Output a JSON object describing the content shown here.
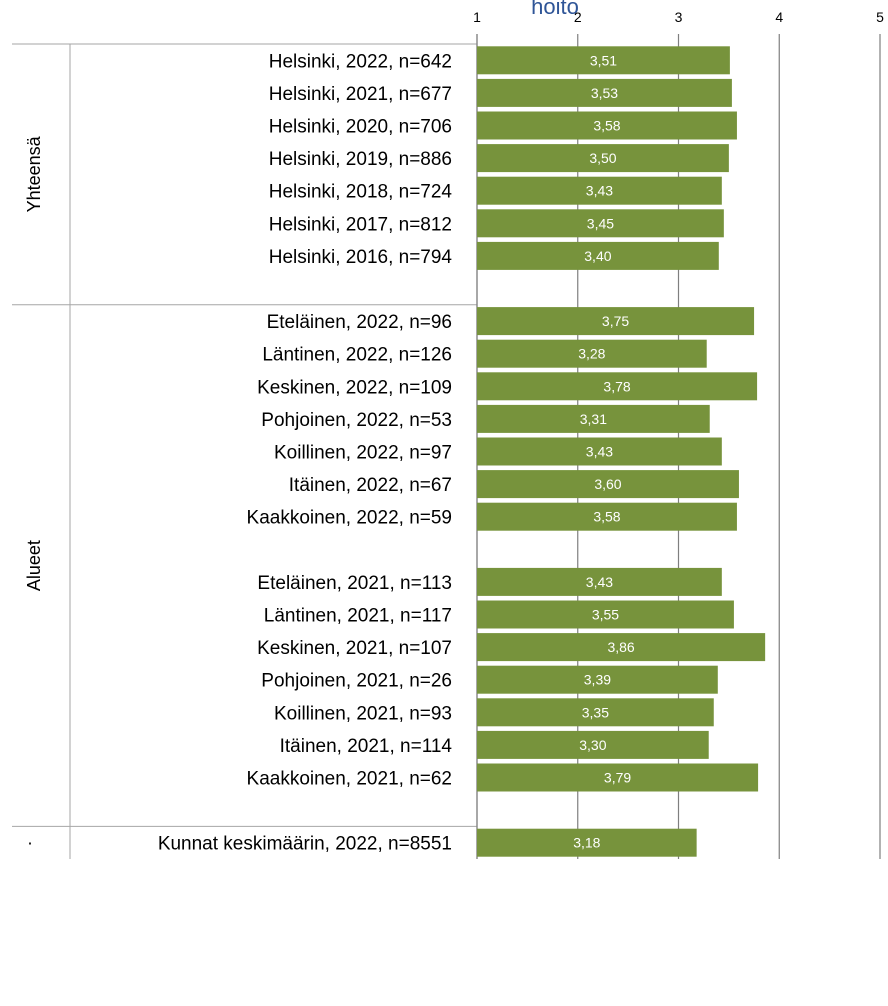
{
  "chart_data": {
    "type": "bar",
    "orientation": "horizontal",
    "title": "hoito",
    "xlim": [
      1,
      5
    ],
    "xticks": [
      "1",
      "2",
      "3",
      "4",
      "5"
    ],
    "grid": true,
    "bar_color": "#77933c",
    "title_color": "#2f5597",
    "groups": [
      {
        "label": "Yhteensä",
        "items": [
          {
            "label": "Helsinki, 2022, n=642",
            "value": 3.51,
            "value_label": "3,51"
          },
          {
            "label": "Helsinki, 2021, n=677",
            "value": 3.53,
            "value_label": "3,53"
          },
          {
            "label": "Helsinki, 2020, n=706",
            "value": 3.58,
            "value_label": "3,58"
          },
          {
            "label": "Helsinki, 2019, n=886",
            "value": 3.5,
            "value_label": "3,50"
          },
          {
            "label": "Helsinki, 2018, n=724",
            "value": 3.43,
            "value_label": "3,43"
          },
          {
            "label": "Helsinki, 2017, n=812",
            "value": 3.45,
            "value_label": "3,45"
          },
          {
            "label": "Helsinki, 2016, n=794",
            "value": 3.4,
            "value_label": "3,40"
          },
          null
        ]
      },
      {
        "label": "Alueet",
        "items": [
          {
            "label": "Eteläinen, 2022, n=96",
            "value": 3.75,
            "value_label": "3,75"
          },
          {
            "label": "Läntinen, 2022, n=126",
            "value": 3.28,
            "value_label": "3,28"
          },
          {
            "label": "Keskinen, 2022, n=109",
            "value": 3.78,
            "value_label": "3,78"
          },
          {
            "label": "Pohjoinen, 2022, n=53",
            "value": 3.31,
            "value_label": "3,31"
          },
          {
            "label": "Koillinen, 2022, n=97",
            "value": 3.43,
            "value_label": "3,43"
          },
          {
            "label": "Itäinen, 2022, n=67",
            "value": 3.6,
            "value_label": "3,60"
          },
          {
            "label": "Kaakkoinen, 2022, n=59",
            "value": 3.58,
            "value_label": "3,58"
          },
          null,
          {
            "label": "Eteläinen, 2021, n=113",
            "value": 3.43,
            "value_label": "3,43"
          },
          {
            "label": "Läntinen, 2021, n=117",
            "value": 3.55,
            "value_label": "3,55"
          },
          {
            "label": "Keskinen, 2021, n=107",
            "value": 3.86,
            "value_label": "3,86"
          },
          {
            "label": "Pohjoinen, 2021, n=26",
            "value": 3.39,
            "value_label": "3,39"
          },
          {
            "label": "Koillinen, 2021, n=93",
            "value": 3.35,
            "value_label": "3,35"
          },
          {
            "label": "Itäinen, 2021, n=114",
            "value": 3.3,
            "value_label": "3,30"
          },
          {
            "label": "Kaakkoinen, 2021, n=62",
            "value": 3.79,
            "value_label": "3,79"
          },
          null
        ]
      },
      {
        "label": "·",
        "items": [
          {
            "label": "Kunnat keskimäärin, 2022, n=8551",
            "value": 3.18,
            "value_label": "3,18"
          }
        ]
      }
    ]
  }
}
